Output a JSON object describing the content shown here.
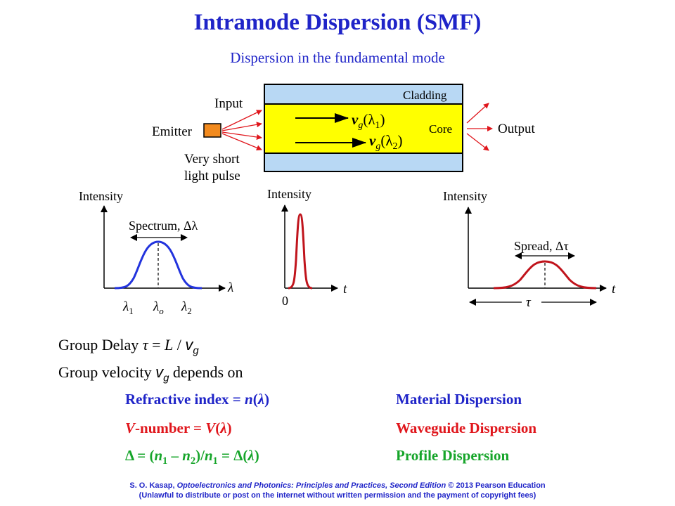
{
  "title": "Intramode Dispersion (SMF)",
  "subtitle": "Dispersion in the fundamental mode",
  "diagram": {
    "input": "Input",
    "emitter": "Emitter",
    "short_pulse_line1": "Very short",
    "short_pulse_line2": "light pulse",
    "cladding": "Cladding",
    "core": "Core",
    "output": "Output",
    "vg": "v",
    "vg_sub": "g",
    "lambda1_arg": "(λ",
    "lambda1_sub": "1",
    "lambda2_sub": "2",
    "close_paren": ")"
  },
  "plots": {
    "spectrum": {
      "ylabel": "Intensity",
      "annotation": "Spectrum, Δλ",
      "xvar": "λ",
      "ticks": [
        "λ1",
        "λo",
        "λ2"
      ]
    },
    "input_pulse": {
      "ylabel": "Intensity",
      "xvar": "t",
      "origin": "0"
    },
    "output_pulse": {
      "ylabel": "Intensity",
      "annotation": "Spread, Δτ",
      "xvar": "t",
      "width_label": "τ"
    }
  },
  "text": {
    "group_delay_prefix": "Group Delay ",
    "tau": "τ",
    "equals": " = ",
    "L": "L",
    "slash": " / ",
    "v": "v",
    "g": "g",
    "group_velocity_prefix": "Group velocity ",
    "depends_on": " depends  on"
  },
  "causes": [
    {
      "cause": "Refractive index = n(λ)",
      "type": "Material Dispersion",
      "color": "#1f24c8"
    },
    {
      "cause": "V-number = V(λ)",
      "type": "Waveguide Dispersion",
      "color": "#e0161c"
    },
    {
      "cause": "Δ = (n1 – n2)/n1 = Δ(λ)",
      "type": "Profile Dispersion",
      "color": "#16a52a"
    }
  ],
  "footer": {
    "author": "S. O. Kasap, ",
    "book": "Optoelectronics and Photonics: Principles and Practices, Second Edition",
    "copyright": "  © 2013 Pearson Education",
    "line2": "(Unlawful to distribute or post on the internet without written permission and the payment of copyright fees)"
  },
  "colors": {
    "heading": "#1f24c8",
    "core": "#ffff00",
    "cladding": "#b8d8f4",
    "emitter": "#f28a1e",
    "pulse_red": "#c0141c",
    "spectrum_blue": "#2233dd"
  }
}
